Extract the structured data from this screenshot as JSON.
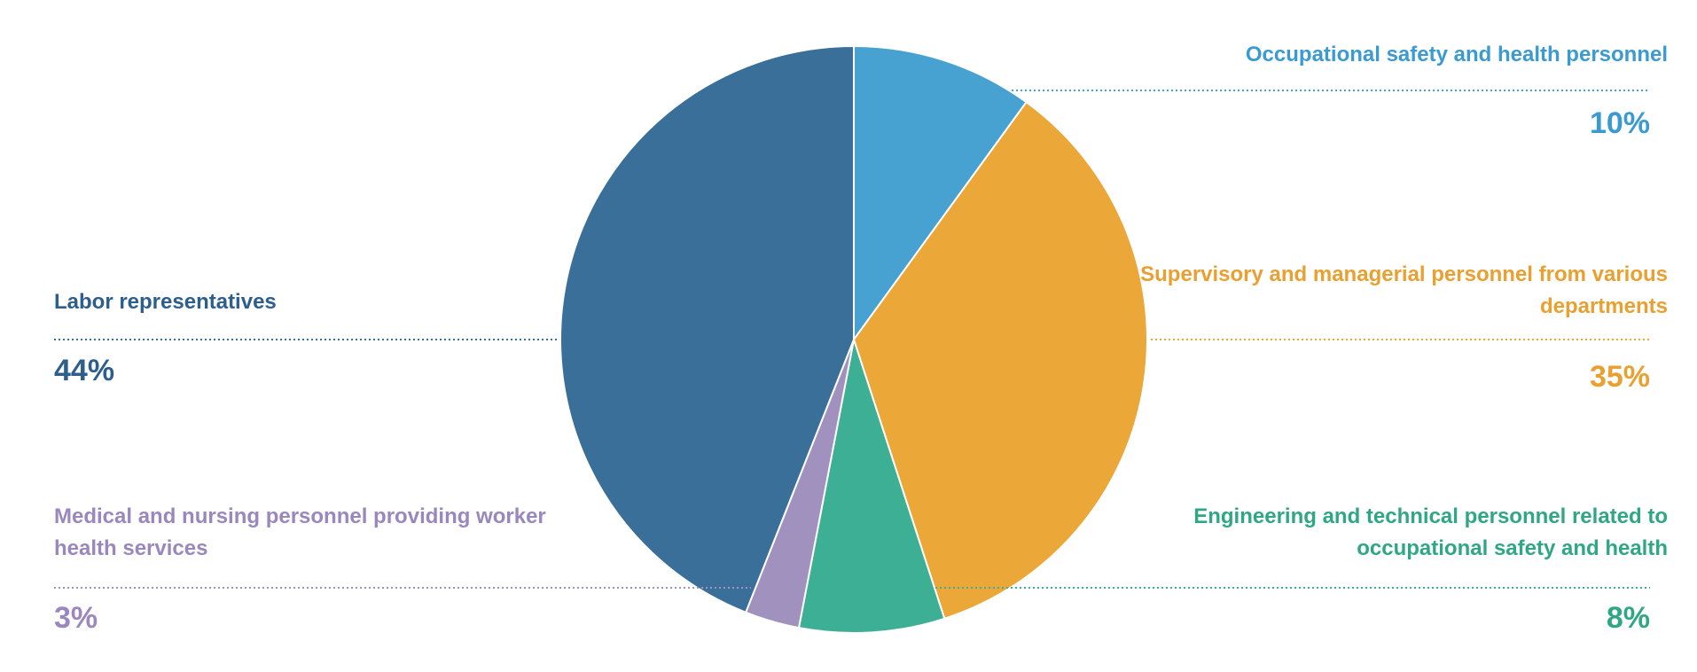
{
  "chart_data": {
    "type": "pie",
    "categories": [
      "Occupational safety and health personnel",
      "Supervisory and managerial personnel from various departments",
      "Engineering and technical personnel related to occupational safety and health",
      "Medical and nursing personnel providing worker health services",
      "Labor representatives"
    ],
    "values": [
      10,
      35,
      8,
      3,
      44
    ],
    "value_labels": [
      "10%",
      "35%",
      "8%",
      "3%",
      "44%"
    ],
    "colors": [
      "#47a1d1",
      "#eba737",
      "#3daf94",
      "#a191bf",
      "#3a6f99"
    ],
    "text_colors": [
      "#3a9ad2",
      "#e9a030",
      "#2fa784",
      "#9a87bd",
      "#2c5e8e"
    ]
  }
}
